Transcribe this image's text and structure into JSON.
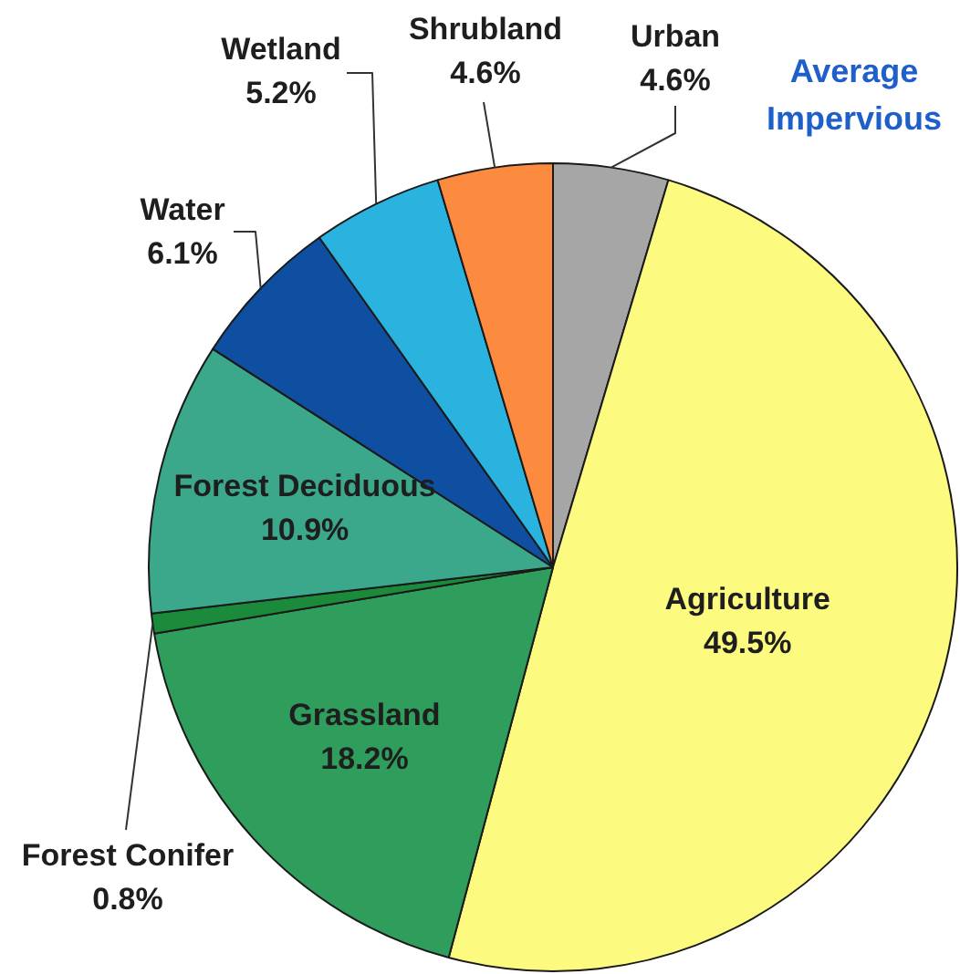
{
  "chart_data": {
    "type": "pie",
    "categories": [
      "Urban",
      "Agriculture",
      "Grassland",
      "Forest Conifer",
      "Forest Deciduous",
      "Water",
      "Wetland",
      "Shrubland"
    ],
    "values": [
      4.6,
      49.5,
      18.2,
      0.8,
      10.9,
      6.1,
      5.2,
      4.6
    ],
    "colors": [
      "#a6a6a6",
      "#fdfa80",
      "#2f9d5c",
      "#1c8a3b",
      "#3ba88b",
      "#0e4fa2",
      "#2ab3df",
      "#fd8b3f"
    ],
    "value_labels": [
      "4.6%",
      "49.5%",
      "18.2%",
      "0.8%",
      "10.9%",
      "6.1%",
      "5.2%",
      "4.6%"
    ],
    "annotations": [
      "Average Impervious"
    ]
  }
}
